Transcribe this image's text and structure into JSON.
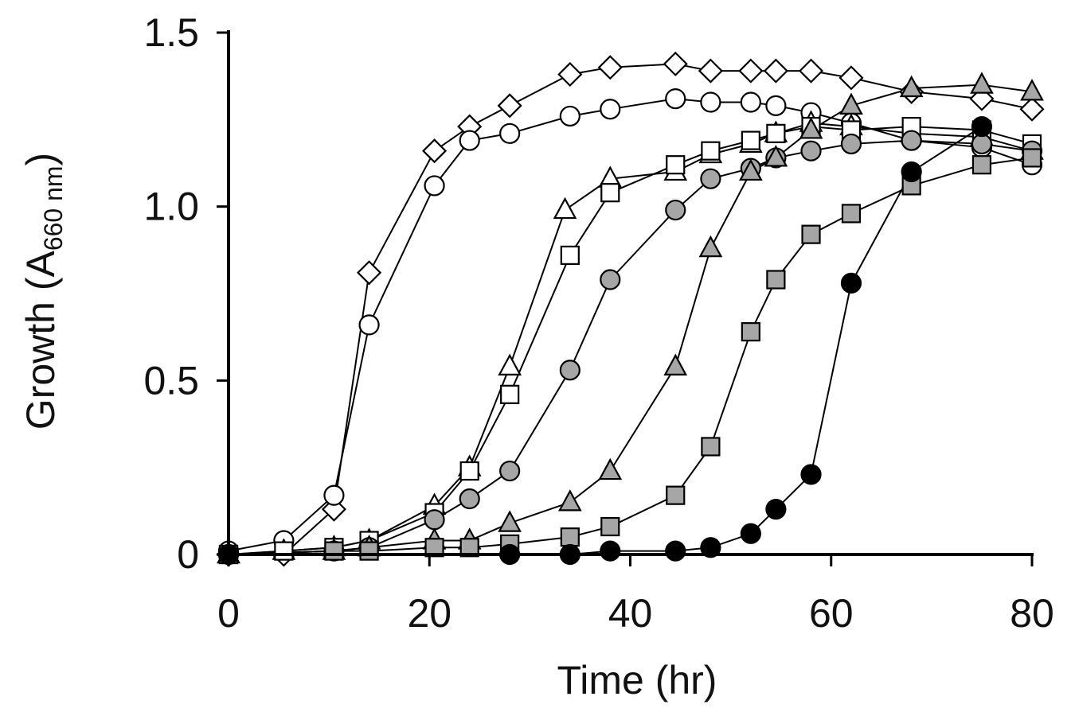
{
  "chart_data": {
    "type": "line",
    "title": "",
    "xlabel": "Time (hr)",
    "ylabel_main": "Growth (A",
    "ylabel_sub": "660 nm",
    "ylabel_close": ")",
    "xlim": [
      0,
      80
    ],
    "ylim": [
      0,
      1.5
    ],
    "xticks": [
      0,
      20,
      40,
      60,
      80
    ],
    "xtick_labels": [
      "0",
      "20",
      "40",
      "60",
      "80"
    ],
    "yticks": [
      0,
      0.5,
      1.0,
      1.5
    ],
    "ytick_labels": [
      "0",
      "0.5",
      "1.0",
      "1.5"
    ],
    "grid": false,
    "legend": "none",
    "series": [
      {
        "name": "open-diamond",
        "marker": "diamond",
        "fill": "#ffffff",
        "x": [
          0,
          5.5,
          10.5,
          14,
          20.5,
          24,
          28,
          34,
          38,
          44.5,
          48,
          52,
          54.5,
          58,
          62,
          68,
          75,
          80
        ],
        "y": [
          0.0,
          0.0,
          0.13,
          0.81,
          1.16,
          1.23,
          1.29,
          1.38,
          1.4,
          1.41,
          1.39,
          1.39,
          1.39,
          1.39,
          1.37,
          1.33,
          1.31,
          1.28
        ]
      },
      {
        "name": "open-circle",
        "marker": "circle",
        "fill": "#ffffff",
        "x": [
          0,
          5.5,
          10.5,
          14,
          20.5,
          24,
          28,
          34,
          38,
          44.5,
          48,
          52,
          54.5,
          58,
          62,
          68,
          75,
          80
        ],
        "y": [
          0.01,
          0.04,
          0.17,
          0.66,
          1.06,
          1.19,
          1.21,
          1.26,
          1.28,
          1.31,
          1.3,
          1.3,
          1.29,
          1.27,
          1.24,
          1.19,
          1.17,
          1.12
        ]
      },
      {
        "name": "open-triangle",
        "marker": "triangle",
        "fill": "#ffffff",
        "x": [
          0,
          5.5,
          10.5,
          14,
          20.5,
          24,
          28,
          33.5,
          38,
          44.5,
          48,
          52,
          54.5,
          58,
          62,
          68,
          75,
          80
        ],
        "y": [
          0.0,
          0.01,
          0.02,
          0.04,
          0.14,
          0.25,
          0.54,
          0.99,
          1.08,
          1.1,
          1.15,
          1.18,
          1.21,
          1.24,
          1.23,
          1.21,
          1.2,
          1.16
        ]
      },
      {
        "name": "open-square",
        "marker": "square",
        "fill": "#ffffff",
        "x": [
          0,
          5.5,
          10.5,
          14,
          20.5,
          24,
          28,
          34,
          38,
          44.5,
          48,
          52,
          54.5,
          58,
          62,
          68,
          75,
          80
        ],
        "y": [
          0.0,
          0.01,
          0.02,
          0.04,
          0.12,
          0.24,
          0.46,
          0.86,
          1.04,
          1.12,
          1.16,
          1.19,
          1.21,
          1.23,
          1.22,
          1.23,
          1.22,
          1.18
        ]
      },
      {
        "name": "gray-circle",
        "marker": "circle",
        "fill": "#a6a6a6",
        "x": [
          0,
          10.5,
          14,
          20.5,
          24,
          28,
          34,
          38,
          44.5,
          48,
          52,
          54.5,
          58,
          62,
          68,
          75,
          80
        ],
        "y": [
          0.0,
          0.01,
          0.02,
          0.1,
          0.16,
          0.24,
          0.53,
          0.79,
          0.99,
          1.08,
          1.11,
          1.14,
          1.16,
          1.18,
          1.19,
          1.18,
          1.16
        ]
      },
      {
        "name": "gray-triangle",
        "marker": "triangle",
        "fill": "#a6a6a6",
        "x": [
          0,
          10.5,
          14,
          20.5,
          24,
          28,
          34,
          38,
          44.5,
          48,
          52,
          54.5,
          58,
          62,
          68,
          75,
          80
        ],
        "y": [
          0.0,
          0.01,
          0.02,
          0.04,
          0.04,
          0.09,
          0.15,
          0.24,
          0.54,
          0.88,
          1.1,
          1.14,
          1.22,
          1.29,
          1.34,
          1.35,
          1.33
        ]
      },
      {
        "name": "gray-square",
        "marker": "square",
        "fill": "#a6a6a6",
        "x": [
          0,
          10.5,
          14,
          20.5,
          24,
          28,
          34,
          38,
          44.5,
          48,
          52,
          54.5,
          58,
          62,
          68,
          75,
          80
        ],
        "y": [
          0.0,
          0.01,
          0.01,
          0.02,
          0.02,
          0.03,
          0.05,
          0.08,
          0.17,
          0.31,
          0.64,
          0.79,
          0.92,
          0.98,
          1.06,
          1.12,
          1.14
        ]
      },
      {
        "name": "black-circle",
        "marker": "circle",
        "fill": "#000000",
        "x": [
          0,
          28,
          34,
          38,
          44.5,
          48,
          52,
          54.5,
          58,
          62,
          68,
          75
        ],
        "y": [
          0.0,
          0.0,
          0.0,
          0.01,
          0.01,
          0.02,
          0.06,
          0.13,
          0.23,
          0.78,
          1.1,
          1.23
        ]
      }
    ]
  }
}
